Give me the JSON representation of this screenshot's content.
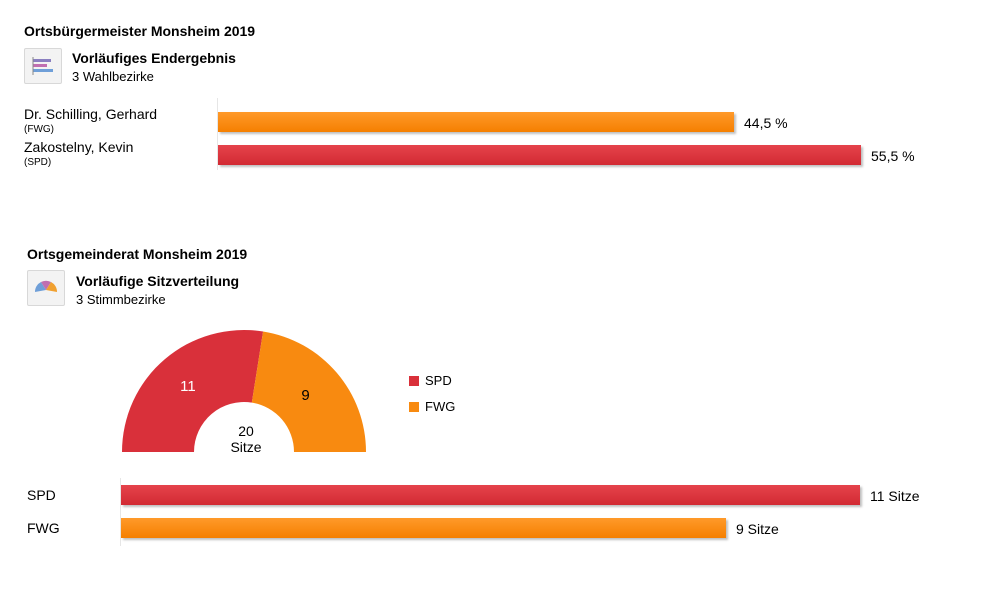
{
  "mayor": {
    "title": "Ortsbürgermeister Monsheim 2019",
    "subtitle": "Vorläufiges Endergebnis",
    "detail": "3 Wahlbezirke",
    "icon": "bar-chart-icon"
  },
  "council": {
    "title": "Ortsgemeinderat Monsheim 2019",
    "subtitle": "Vorläufige Sitzverteilung",
    "detail": "3 Stimmbezirke",
    "icon": "half-pie-icon",
    "center_number": "20",
    "center_label": "Sitze"
  },
  "colors": {
    "SPD": "#d9303a",
    "FWG": "#f88a10"
  },
  "chart_data": [
    {
      "type": "bar",
      "orientation": "horizontal",
      "categories": [
        "Dr. Schilling, Gerhard",
        "Zakostelny, Kevin"
      ],
      "parties": [
        "(FWG)",
        "(SPD)"
      ],
      "values": [
        44.5,
        55.5
      ],
      "value_labels": [
        "44,5 %",
        "55,5 %"
      ],
      "xlim": [
        0,
        55.5
      ]
    },
    {
      "type": "pie",
      "variant": "semicircle-donut",
      "categories": [
        "SPD",
        "FWG"
      ],
      "values": [
        11,
        9
      ],
      "slice_labels": [
        "11",
        "9"
      ],
      "legend": [
        "SPD",
        "FWG"
      ],
      "legend_position": "right"
    },
    {
      "type": "bar",
      "orientation": "horizontal",
      "categories": [
        "SPD",
        "FWG"
      ],
      "values": [
        11,
        9
      ],
      "value_labels": [
        "11 Sitze",
        "9 Sitze"
      ],
      "xlim": [
        0,
        11
      ]
    }
  ]
}
